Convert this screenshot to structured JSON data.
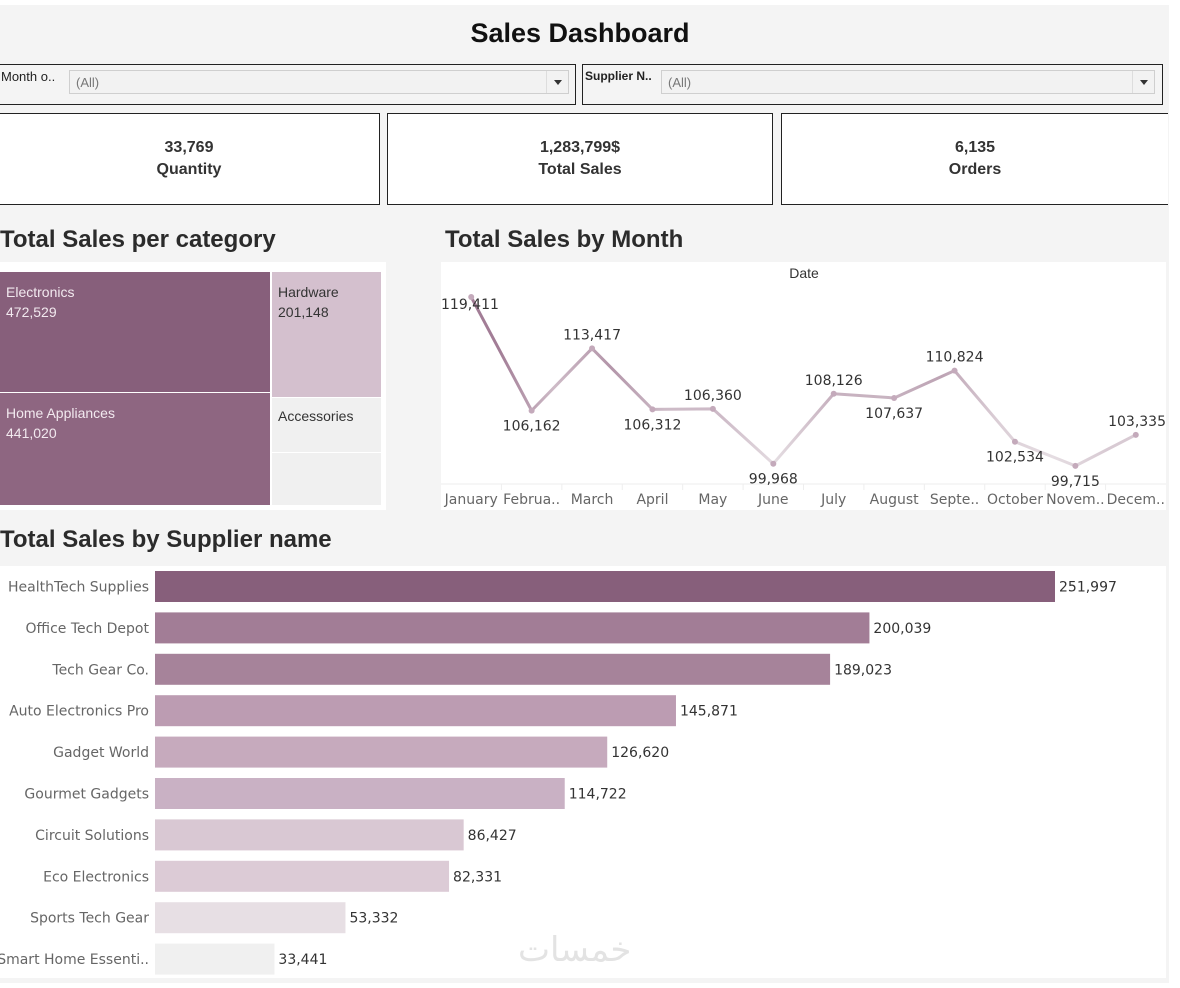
{
  "header": {
    "title": "Sales Dashboard"
  },
  "filters": [
    {
      "label": "Month o..",
      "value": "(All)"
    },
    {
      "label": "Supplier N..",
      "value": "(All)"
    }
  ],
  "kpis": [
    {
      "value": "33,769",
      "label": "Quantity"
    },
    {
      "value": "1,283,799$",
      "label": "Total Sales"
    },
    {
      "value": "6,135",
      "label": "Orders"
    }
  ],
  "colors": {
    "dark": "#875f7b",
    "mid": "#a27d96",
    "light": "#d4c0ce",
    "lightest": "#f0f0f0",
    "line_start": "#a27d96",
    "line_end": "#e6dde3"
  },
  "sections": {
    "category": "Total Sales per category",
    "month": "Total Sales by Month",
    "supplier": "Total Sales by Supplier name"
  },
  "watermark": "خمسات",
  "chart_data": [
    {
      "type": "treemap",
      "title": "Total Sales per category",
      "items": [
        {
          "label": "Electronics",
          "value": 472529,
          "value_label": "472,529",
          "color": "#875f7b"
        },
        {
          "label": "Home Appliances",
          "value": 441020,
          "value_label": "441,020",
          "color": "#8e6681"
        },
        {
          "label": "Hardware",
          "value": 201148,
          "value_label": "201,148",
          "color": "#d4c0ce"
        },
        {
          "label": "Accessories",
          "value": null,
          "value_label": "",
          "color": "#f0f0f0"
        },
        {
          "label": "",
          "value": null,
          "value_label": "",
          "color": "#f0f0f0"
        }
      ]
    },
    {
      "type": "line",
      "title": "Total Sales by Month",
      "header_label": "Date",
      "categories": [
        "January",
        "Februa..",
        "March",
        "April",
        "May",
        "June",
        "July",
        "August",
        "Septe..",
        "October",
        "Novem..",
        "Decem.."
      ],
      "values": [
        119411,
        106162,
        113417,
        106312,
        106360,
        99968,
        108126,
        107637,
        110824,
        102534,
        99715,
        103335
      ],
      "value_labels": [
        "119,411",
        "106,162",
        "113,417",
        "106,312",
        "106,360",
        "99,968",
        "108,126",
        "107,637",
        "110,824",
        "102,534",
        "99,715",
        "103,335"
      ],
      "label_pos": [
        "below",
        "below",
        "above",
        "below",
        "above",
        "below",
        "above",
        "below",
        "above",
        "below",
        "below",
        "above"
      ],
      "ylim": [
        99000,
        120000
      ],
      "grid": false
    },
    {
      "type": "bar",
      "orientation": "horizontal",
      "title": "Total Sales by Supplier name",
      "categories": [
        "HealthTech Supplies",
        "Office Tech Depot",
        "Tech Gear Co.",
        "Auto Electronics Pro",
        "Gadget World",
        "Gourmet Gadgets",
        "Circuit Solutions",
        "Eco Electronics",
        "Sports Tech Gear",
        "Smart Home Essenti.."
      ],
      "values": [
        251997,
        200039,
        189023,
        145871,
        126620,
        114722,
        86427,
        82331,
        53332,
        33441
      ],
      "value_labels": [
        "251,997",
        "200,039",
        "189,023",
        "145,871",
        "126,620",
        "114,722",
        "86,427",
        "82,331",
        "53,332",
        "33,441"
      ],
      "colors": [
        "#875f7b",
        "#a27d96",
        "#a6839a",
        "#bc9cb2",
        "#c6aabd",
        "#c9b1c4",
        "#d9c8d3",
        "#dccbd6",
        "#e7dfe4",
        "#f0f0f0"
      ],
      "xlim": [
        0,
        251997
      ]
    }
  ]
}
